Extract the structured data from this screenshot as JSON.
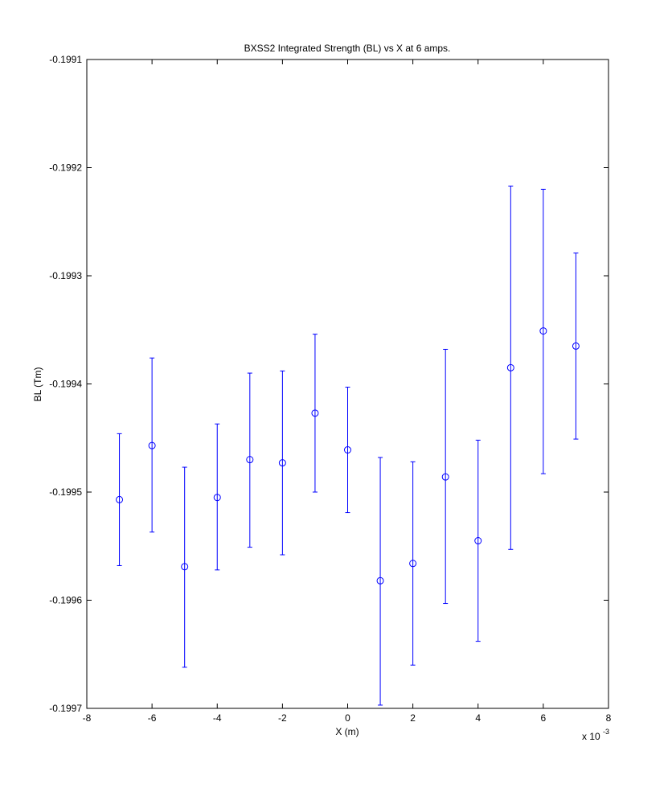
{
  "chart_data": {
    "type": "scatter",
    "title": "BXSS2 Integrated Strength (BL) vs X at 6 amps.",
    "xlabel": "X (m)",
    "ylabel": "BL (Tm)",
    "x_multiplier_label": "x 10",
    "x_multiplier_exponent": "-3",
    "xlim": [
      -8,
      8
    ],
    "ylim": [
      -0.1997,
      -0.1991
    ],
    "x_ticks": [
      -8,
      -6,
      -4,
      -2,
      0,
      2,
      4,
      6,
      8
    ],
    "x_tick_labels": [
      "-8",
      "-6",
      "-4",
      "-2",
      "0",
      "2",
      "4",
      "6",
      "8"
    ],
    "y_ticks": [
      -0.1997,
      -0.1996,
      -0.1995,
      -0.1994,
      -0.1993,
      -0.1992,
      -0.1991
    ],
    "y_tick_labels": [
      "-0.1997",
      "-0.1996",
      "-0.1995",
      "-0.1994",
      "-0.1993",
      "-0.1992",
      "-0.1991"
    ],
    "grid": false,
    "marker": "circle",
    "color": "#0000ff",
    "points": [
      {
        "x": -7,
        "y": -0.199507,
        "lower": -0.199568,
        "upper": -0.199446
      },
      {
        "x": -6,
        "y": -0.199457,
        "lower": -0.199537,
        "upper": -0.199376
      },
      {
        "x": -5,
        "y": -0.199569,
        "lower": -0.199662,
        "upper": -0.199477
      },
      {
        "x": -4,
        "y": -0.199505,
        "lower": -0.199572,
        "upper": -0.199437
      },
      {
        "x": -3,
        "y": -0.19947,
        "lower": -0.199551,
        "upper": -0.19939
      },
      {
        "x": -2,
        "y": -0.199473,
        "lower": -0.199558,
        "upper": -0.199388
      },
      {
        "x": -1,
        "y": -0.199427,
        "lower": -0.1995,
        "upper": -0.199354
      },
      {
        "x": 0,
        "y": -0.199461,
        "lower": -0.199519,
        "upper": -0.199403
      },
      {
        "x": 1,
        "y": -0.199582,
        "lower": -0.199697,
        "upper": -0.199468
      },
      {
        "x": 2,
        "y": -0.199566,
        "lower": -0.19966,
        "upper": -0.199472
      },
      {
        "x": 3,
        "y": -0.199486,
        "lower": -0.199603,
        "upper": -0.199368
      },
      {
        "x": 4,
        "y": -0.199545,
        "lower": -0.199638,
        "upper": -0.199452
      },
      {
        "x": 5,
        "y": -0.199385,
        "lower": -0.199553,
        "upper": -0.199217
      },
      {
        "x": 6,
        "y": -0.199351,
        "lower": -0.199483,
        "upper": -0.19922
      },
      {
        "x": 7,
        "y": -0.199365,
        "lower": -0.199451,
        "upper": -0.199279
      }
    ]
  }
}
